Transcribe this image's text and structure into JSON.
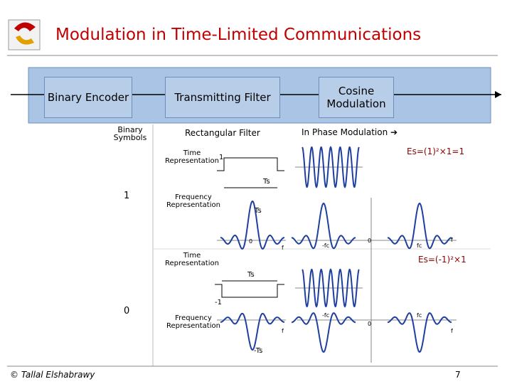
{
  "header": {
    "title": "Modulation in Time-Limited Communications"
  },
  "blocks": [
    "Binary Encoder",
    "Transmitting Filter",
    "Cosine Modulation"
  ],
  "columns": {
    "symbols": "Binary Symbols",
    "filter": "Rectangular Filter",
    "modulation": "In Phase Modulation ➔"
  },
  "rows": [
    {
      "symbol": "1",
      "time_label": "Time Representation",
      "amplitude": "1",
      "duration": "Ts",
      "energy": "Es=(1)²×1=1",
      "freq_label": "Frequency Representation",
      "freq_peak": "Ts",
      "freq_axis": [
        "0",
        "f"
      ],
      "mod_axis": [
        "-fc",
        "0",
        "fc",
        "f"
      ]
    },
    {
      "symbol": "0",
      "time_label": "Time Representation",
      "amplitude": "-1",
      "duration": "Ts",
      "energy": "Es=(-1)²×1",
      "freq_label": "Frequency Representation",
      "freq_peak": "-Ts",
      "freq_axis": [
        "f"
      ],
      "mod_axis": [
        "-fc",
        "0",
        "fc",
        "f"
      ]
    }
  ],
  "footer": {
    "credit": "© Tallal Elshabrawy",
    "page": "7"
  }
}
